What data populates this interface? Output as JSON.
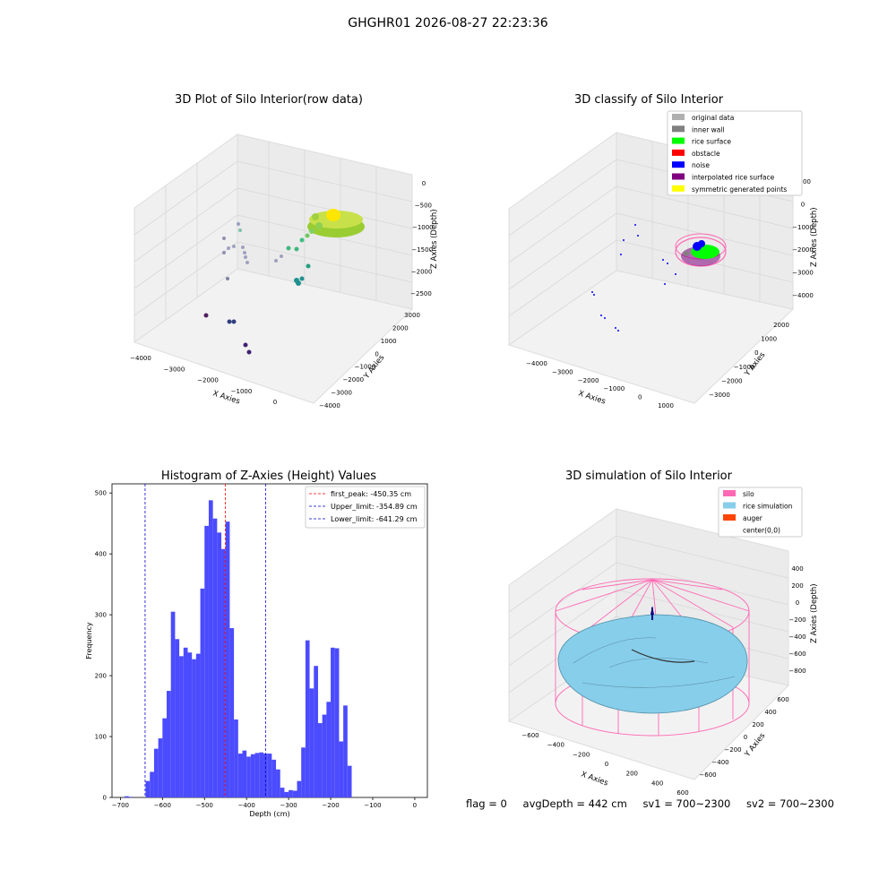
{
  "figure": {
    "title": "GHGHR01 2026-08-27 22:23:36"
  },
  "status": {
    "flag": "flag = 0",
    "avg_depth": "avgDepth = 442 cm",
    "sv1": "sv1 = 700~2300",
    "sv2": "sv2 = 700~2300"
  },
  "colors": {
    "hist_bar": "#4b4bff",
    "first_peak": "#ff0000",
    "limits": "#0000cc",
    "silo": "#ff69b4",
    "rice_simulation": "#87ceeb",
    "auger": "#ff4500",
    "rice_surface": "#00ff00",
    "noise": "#0000ff",
    "obstacle": "#ff0000",
    "inner_wall": "#808080",
    "original_data": "#b0b0b0",
    "interpolated": "#800080",
    "symmetric": "#ffff00"
  },
  "chart_data": [
    {
      "type": "scatter",
      "title": "3D Plot of Silo Interior(row data)",
      "xlabel": "X Axies",
      "ylabel": "Y Axies",
      "zlabel": "Z Axies (Depth)",
      "xticks": [
        "−4000",
        "−3000",
        "−2000",
        "−1000",
        "0"
      ],
      "yticks": [
        "−4000",
        "−3000",
        "−2000",
        "−1000",
        "0",
        "1000",
        "2000",
        "3000"
      ],
      "zticks": [
        "0",
        "−500",
        "−1000",
        "−1500",
        "−2000",
        "−2500"
      ]
    },
    {
      "type": "scatter",
      "title": "3D classify of Silo Interior",
      "xlabel": "X Axies",
      "ylabel": "Y Axies",
      "zlabel": "Z Axies (Depth)",
      "xticks": [
        "−4000",
        "−3000",
        "−2000",
        "−1000",
        "0",
        "1000"
      ],
      "yticks": [
        "−3000",
        "−2000",
        "−1000",
        "0",
        "1000",
        "2000"
      ],
      "zticks": [
        "1000",
        "0",
        "−1000",
        "−2000",
        "−3000",
        "−4000"
      ],
      "legend": [
        "original data",
        "inner wall",
        "rice surface",
        "obstacle",
        "noise",
        "interpolated rice surface",
        "symmetric generated points"
      ],
      "legend_placement": "top-right"
    },
    {
      "type": "bar",
      "title": "Histogram of Z-Axies (Height) Values",
      "xlabel": "Depth (cm)",
      "ylabel": "Frequency",
      "xlim": [
        -720,
        30
      ],
      "ylim": [
        0,
        515
      ],
      "xticks": [
        -700,
        -600,
        -500,
        -400,
        -300,
        -200,
        -100,
        0
      ],
      "yticks": [
        0,
        100,
        200,
        300,
        400,
        500
      ],
      "bin_width": 10,
      "bin_starts": [
        -690,
        -680,
        -670,
        -660,
        -650,
        -640,
        -630,
        -620,
        -610,
        -600,
        -590,
        -580,
        -570,
        -560,
        -550,
        -540,
        -530,
        -520,
        -510,
        -500,
        -490,
        -480,
        -470,
        -460,
        -450,
        -440,
        -430,
        -420,
        -410,
        -400,
        -390,
        -380,
        -370,
        -360,
        -350,
        -340,
        -330,
        -320,
        -310,
        -300,
        -290,
        -280,
        -270,
        -260,
        -250,
        -240,
        -230,
        -220,
        -210,
        -200,
        -190,
        -180,
        -170,
        -160,
        -150,
        -140,
        -130,
        -120,
        -110,
        -100,
        -90,
        -80,
        -70,
        -60,
        -50,
        -40,
        -30,
        -20,
        -10
      ],
      "values": [
        2,
        1,
        0,
        0,
        0,
        27,
        42,
        80,
        97,
        130,
        175,
        305,
        260,
        232,
        246,
        238,
        227,
        236,
        343,
        446,
        488,
        458,
        435,
        408,
        453,
        278,
        128,
        72,
        77,
        67,
        71,
        73,
        74,
        72,
        72,
        62,
        46,
        16,
        9,
        12,
        11,
        27,
        82,
        258,
        179,
        216,
        122,
        136,
        157,
        246,
        245,
        92,
        151,
        52,
        0,
        0,
        0,
        0,
        0,
        0,
        0,
        0,
        0,
        0,
        0,
        0,
        0,
        0,
        0
      ],
      "vlines": [
        {
          "label": "first_peak: -450.35 cm",
          "x": -450.35,
          "color": "#ff0000"
        },
        {
          "label": "Upper_limit: -354.89 cm",
          "x": -354.89,
          "color": "#0000cc"
        },
        {
          "label": "Lower_limit: -641.29 cm",
          "x": -641.29,
          "color": "#0000cc"
        }
      ],
      "legend_placement": "top-right"
    },
    {
      "type": "surface",
      "title": "3D simulation of Silo Interior",
      "xlabel": "X Axies",
      "ylabel": "Y Axies",
      "zlabel": "Z Axies (Depth)",
      "xticks": [
        "−600",
        "−400",
        "−200",
        "0",
        "200",
        "400",
        "600"
      ],
      "yticks": [
        "−600",
        "−400",
        "−200",
        "0",
        "200",
        "400",
        "600"
      ],
      "zticks": [
        "400",
        "200",
        "0",
        "−200",
        "−400",
        "−600",
        "−800"
      ],
      "legend": [
        "silo",
        "rice simulation",
        "auger",
        "center(0,0)"
      ],
      "legend_placement": "top-right"
    }
  ]
}
